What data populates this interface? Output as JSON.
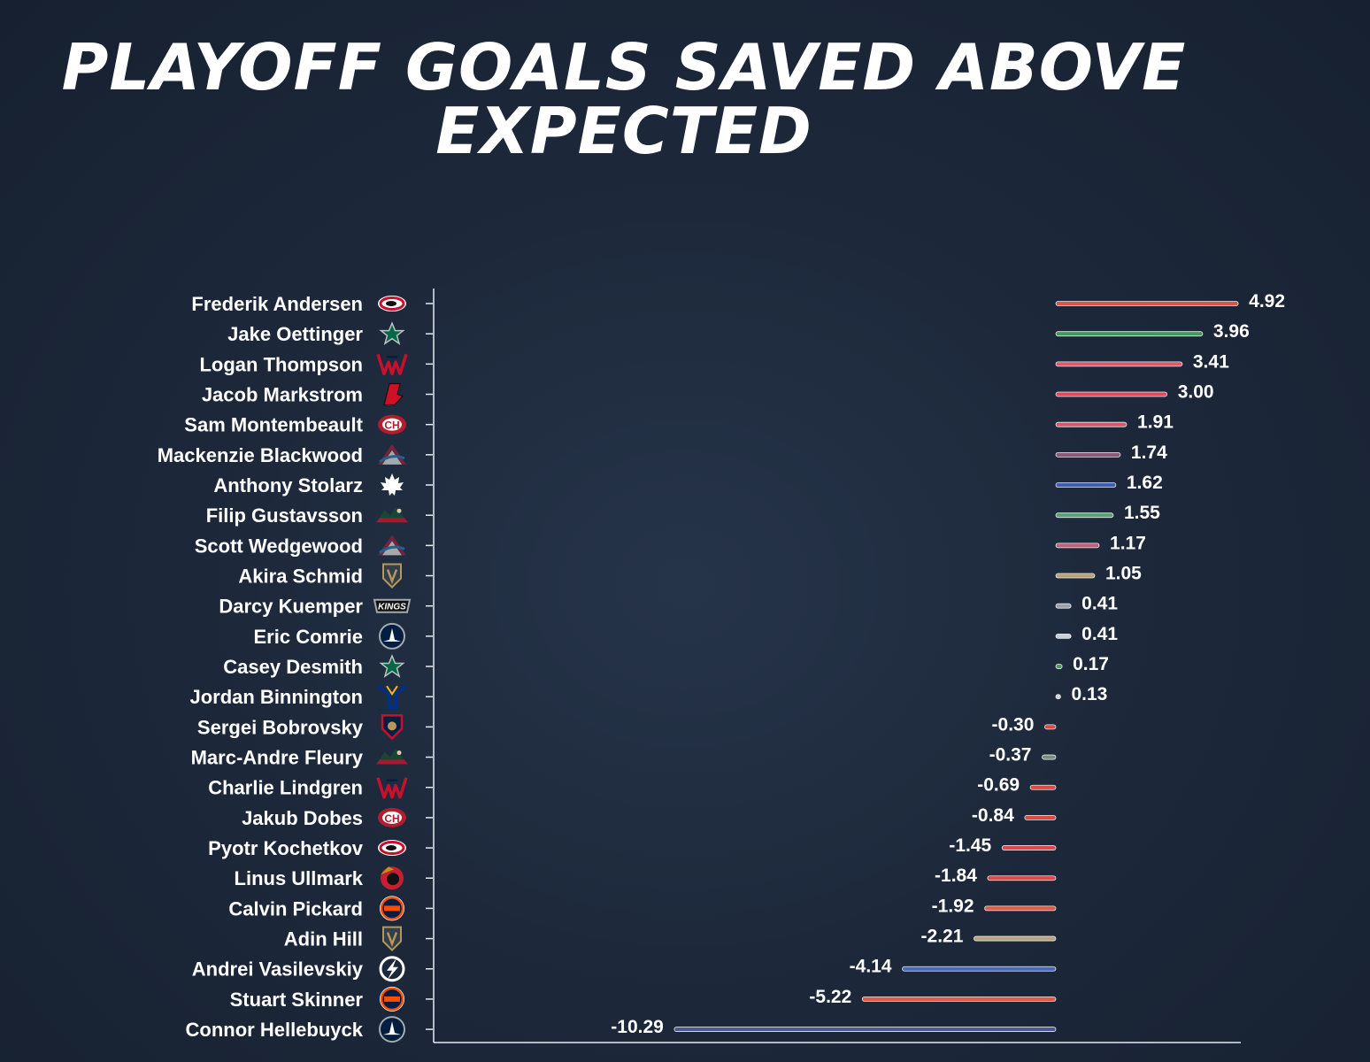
{
  "title": "PLAYOFF GOALS SAVED ABOVE EXPECTED",
  "chart_data": {
    "type": "bar",
    "orientation": "horizontal",
    "title": "PLAYOFF GOALS SAVED ABOVE EXPECTED",
    "xlabel": "",
    "ylabel": "",
    "grid": false,
    "xlim": [
      -11.5,
      5.0
    ],
    "value_labels_decimals": 2,
    "categories": [
      "Frederik Andersen",
      "Jake Oettinger",
      "Logan Thompson",
      "Jacob Markstrom",
      "Sam Montembeault",
      "Mackenzie Blackwood",
      "Anthony Stolarz",
      "Filip Gustavsson",
      "Scott Wedgewood",
      "Akira Schmid",
      "Darcy Kuemper",
      "Eric Comrie",
      "Casey Desmith",
      "Jordan Binnington",
      "Sergei Bobrovsky",
      "Marc-Andre Fleury",
      "Charlie Lindgren",
      "Jakub Dobes",
      "Pyotr Kochetkov",
      "Linus Ullmark",
      "Calvin Pickard",
      "Adin Hill",
      "Andrei Vasilevskiy",
      "Stuart Skinner",
      "Connor Hellebuyck"
    ],
    "values": [
      4.92,
      3.96,
      3.41,
      3.0,
      1.91,
      1.74,
      1.62,
      1.55,
      1.17,
      1.05,
      0.41,
      0.41,
      0.17,
      0.13,
      -0.3,
      -0.37,
      -0.69,
      -0.84,
      -1.45,
      -1.84,
      -1.92,
      -2.21,
      -4.14,
      -5.22,
      -10.29
    ],
    "value_labels": [
      "4.92",
      "3.96",
      "3.41",
      "3.00",
      "1.91",
      "1.74",
      "1.62",
      "1.55",
      "1.17",
      "1.05",
      "0.41",
      "0.41",
      "0.17",
      "0.13",
      "-0.30",
      "-0.37",
      "-0.69",
      "-0.84",
      "-1.45",
      "-1.84",
      "-1.92",
      "-2.21",
      "-4.14",
      "-5.22",
      "-10.29"
    ],
    "bar_colors": [
      "#d9534f",
      "#3f9a5a",
      "#e0566a",
      "#e24a5a",
      "#d8566a",
      "#8a5a78",
      "#3d5fb8",
      "#5aa070",
      "#c0607a",
      "#b8a27a",
      "#9aa0a8",
      "#c8d0dc",
      "#4a9a5e",
      "#d0d6e0",
      "#e04848",
      "#7a8a80",
      "#e04848",
      "#e04848",
      "#e04848",
      "#e04848",
      "#e05a48",
      "#b8a27a",
      "#4a6ab8",
      "#e2584a",
      "#4a5a98"
    ],
    "team_icons": [
      "hurricanes-logo-icon",
      "stars-logo-icon",
      "capitals-logo-icon",
      "devils-logo-icon",
      "canadiens-logo-icon",
      "avalanche-logo-icon",
      "maple-leafs-logo-icon",
      "wild-logo-icon",
      "avalanche-logo-icon",
      "golden-knights-logo-icon",
      "kings-logo-icon",
      "jets-logo-icon",
      "stars-logo-icon",
      "blues-logo-icon",
      "panthers-logo-icon",
      "wild-logo-icon",
      "capitals-logo-icon",
      "canadiens-logo-icon",
      "hurricanes-logo-icon",
      "senators-logo-icon",
      "oilers-logo-icon",
      "golden-knights-logo-icon",
      "lightning-logo-icon",
      "oilers-logo-icon",
      "jets-logo-icon"
    ],
    "team_colors": [
      "#c8102e",
      "#006847",
      "#c8102e",
      "#ce1126",
      "#af1e2d",
      "#6f263d",
      "#00205b",
      "#154734",
      "#6f263d",
      "#b4975a",
      "#a2aaad",
      "#041e42",
      "#006847",
      "#002f87",
      "#c8102e",
      "#154734",
      "#c8102e",
      "#af1e2d",
      "#c8102e",
      "#c52032",
      "#ff4c00",
      "#b4975a",
      "#002868",
      "#ff4c00",
      "#041e42"
    ]
  }
}
